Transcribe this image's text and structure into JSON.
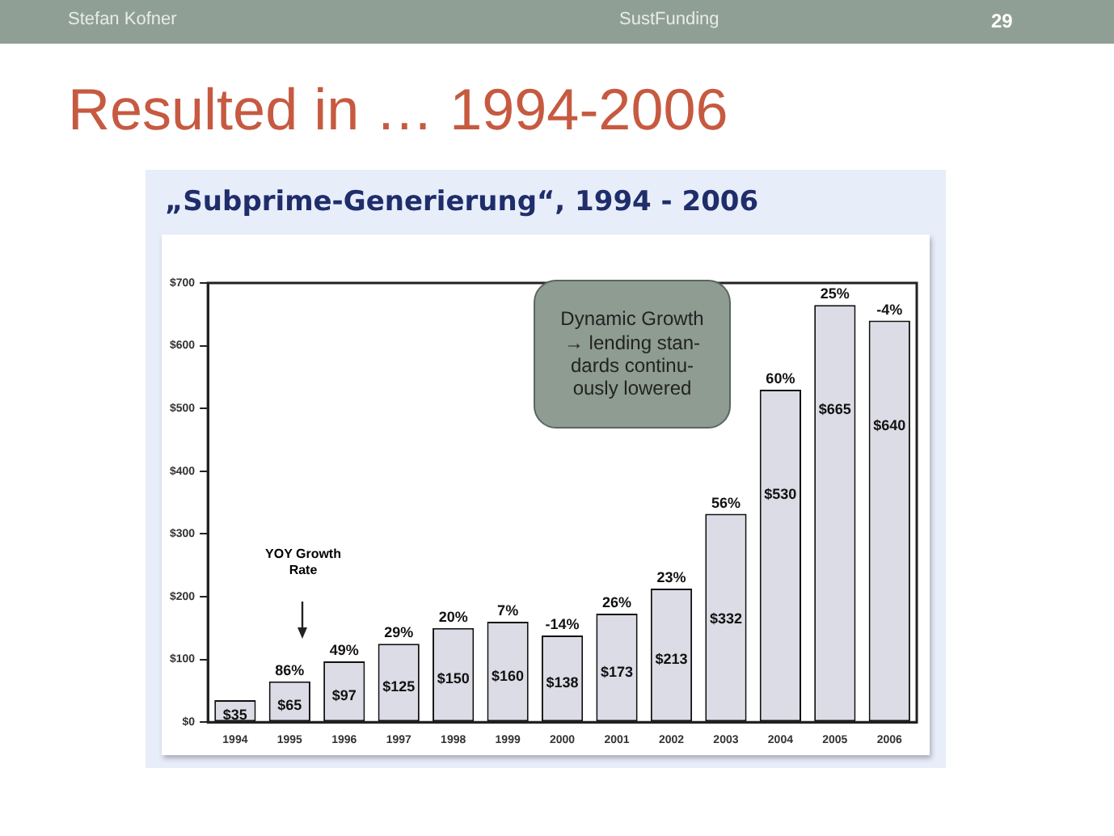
{
  "chart_data": {
    "type": "bar",
    "title": "Resulted in … 1994-2006",
    "subtitle": "„Subprime-Generierung“, 1994 - 2006",
    "categories": [
      "1994",
      "1995",
      "1996",
      "1997",
      "1998",
      "1999",
      "2000",
      "2001",
      "2002",
      "2003",
      "2004",
      "2005",
      "2006"
    ],
    "values": [
      35,
      65,
      97,
      125,
      150,
      160,
      138,
      173,
      213,
      332,
      530,
      665,
      640
    ],
    "value_labels": [
      "$35",
      "$65",
      "$97",
      "$125",
      "$150",
      "$160",
      "$138",
      "$173",
      "$213",
      "$332",
      "$530",
      "$665",
      "$640"
    ],
    "color": "#dcdce6",
    "ylim": [
      0,
      700
    ],
    "yticks": [
      {
        "value": 0,
        "label": "$0"
      },
      {
        "value": 100,
        "label": "$100"
      },
      {
        "value": 200,
        "label": "$200"
      },
      {
        "value": 300,
        "label": "$300"
      },
      {
        "value": 400,
        "label": "$400"
      },
      {
        "value": 500,
        "label": "$500"
      },
      {
        "value": 600,
        "label": "$600"
      },
      {
        "value": 700,
        "label": "$700"
      }
    ],
    "grid": false,
    "legend": false,
    "annotations": [
      "Stefan Kofner",
      "SustFunding",
      "29",
      "Dynamic Growth\n→ lending stan-\ndards continu-\nously lowered",
      "YOY Growth\nRate",
      {
        "text": "86%",
        "x": "1995",
        "y": 65
      },
      {
        "text": "49%",
        "x": "1996",
        "y": 97
      },
      {
        "text": "29%",
        "x": "1997",
        "y": 125
      },
      {
        "text": "20%",
        "x": "1998",
        "y": 150
      },
      {
        "text": "7%",
        "x": "1999",
        "y": 160
      },
      {
        "text": "-14%",
        "x": "2000",
        "y": 138
      },
      {
        "text": "26%",
        "x": "2001",
        "y": 173
      },
      {
        "text": "23%",
        "x": "2002",
        "y": 213
      },
      {
        "text": "56%",
        "x": "2003",
        "y": 332
      },
      {
        "text": "60%",
        "x": "2004",
        "y": 530
      },
      {
        "text": "25%",
        "x": "2005",
        "y": 665
      },
      {
        "text": "-4%",
        "x": "2006",
        "y": 640
      }
    ]
  }
}
